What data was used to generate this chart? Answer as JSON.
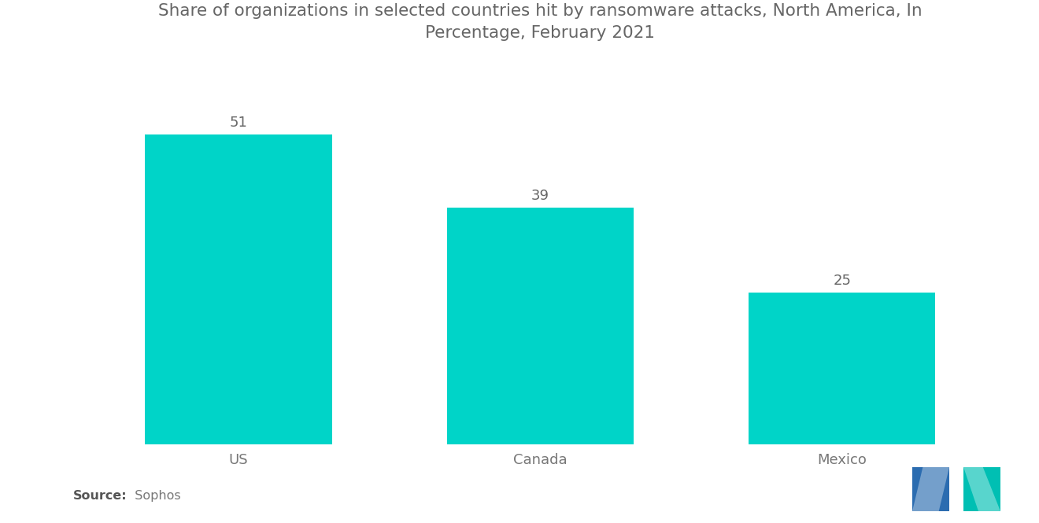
{
  "title": "Share of organizations in selected countries hit by ransomware attacks, North America, In\nPercentage, February 2021",
  "categories": [
    "US",
    "Canada",
    "Mexico"
  ],
  "values": [
    51,
    39,
    25
  ],
  "bar_color": "#00D4C8",
  "source_bold": "Source:",
  "source_normal": "  Sophos",
  "background_color": "#ffffff",
  "title_color": "#666666",
  "label_color": "#777777",
  "value_color": "#666666",
  "ylim": [
    0,
    62
  ],
  "bar_width": 0.62,
  "title_fontsize": 15.5,
  "tick_fontsize": 13,
  "value_fontsize": 13,
  "source_fontsize": 11.5,
  "xlim": [
    -0.55,
    2.55
  ]
}
